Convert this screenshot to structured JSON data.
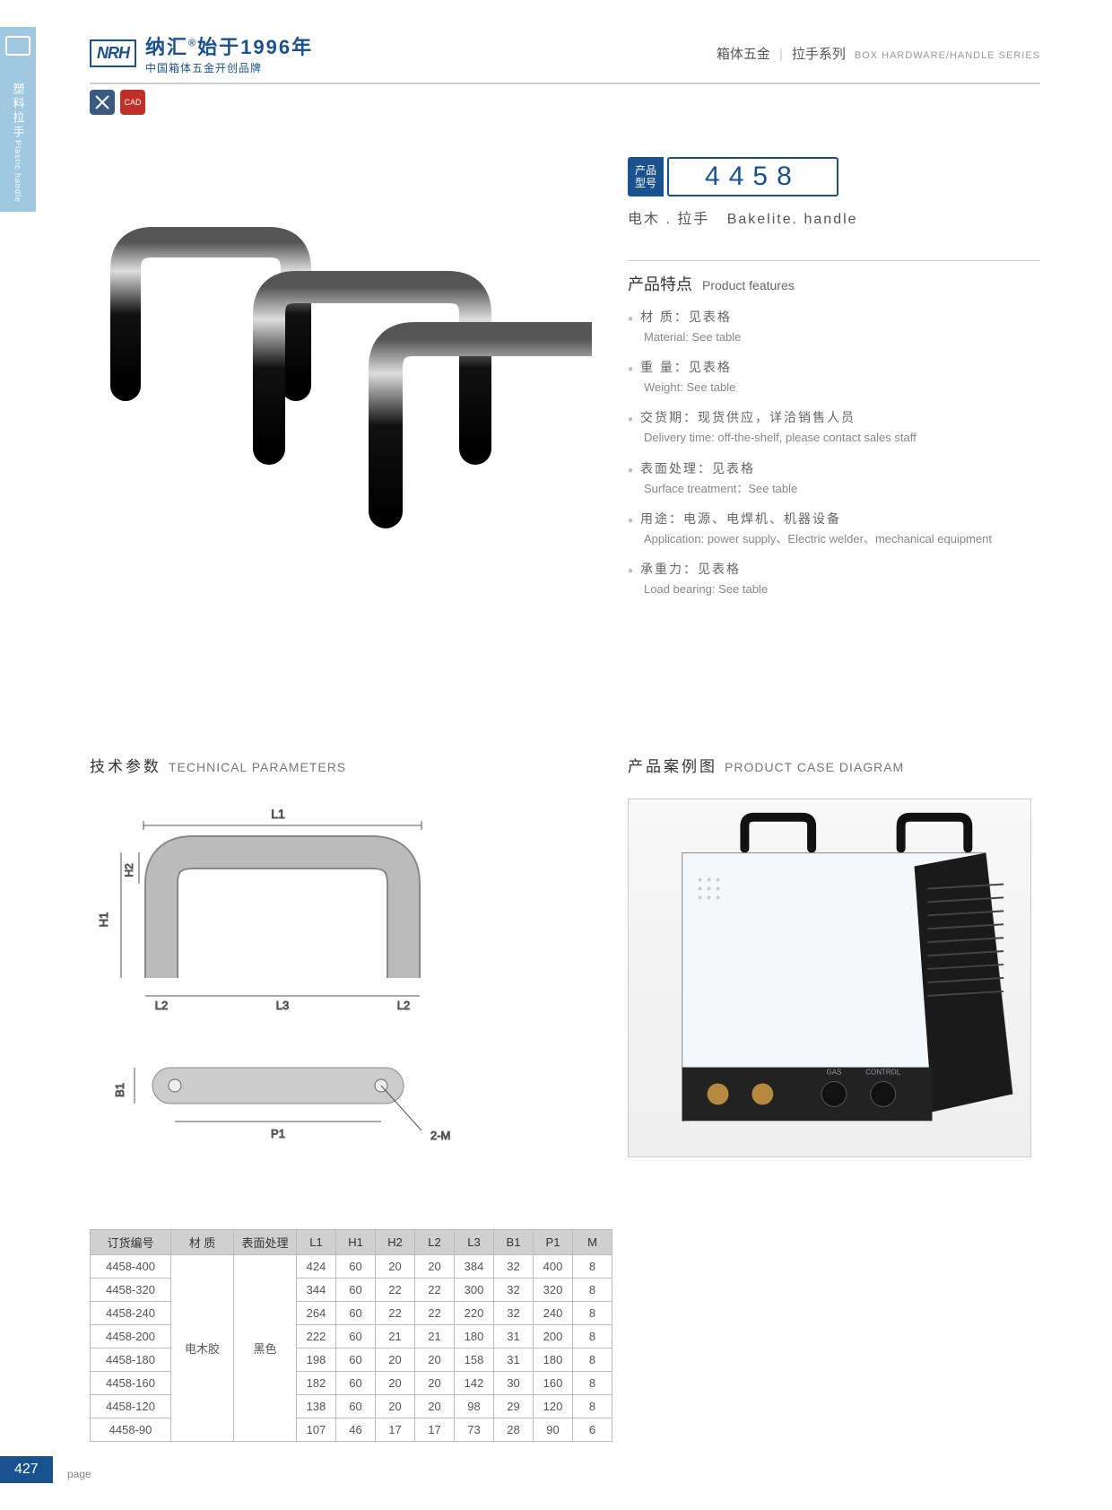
{
  "sidebar": {
    "cn": "塑料拉手",
    "en": "Plastic handle"
  },
  "logo": {
    "mark": "NRH",
    "cn": "纳汇",
    "suffix": "始于1996年",
    "sub": "中国箱体五金开创品牌",
    "reg": "®"
  },
  "header": {
    "cn1": "箱体五金",
    "cn2": "拉手系列",
    "en": "BOX HARDWARE/HANDLE SERIES"
  },
  "icons": {
    "cad": "CAD"
  },
  "model": {
    "label1": "产品",
    "label2": "型号",
    "number": "4458"
  },
  "product_name": {
    "cn": "电木 . 拉手",
    "en": "Bakelite. handle"
  },
  "features": {
    "title_cn": "产品特点",
    "title_en": "Product features",
    "items": [
      {
        "cn": "材 质：见表格",
        "en": "Material: See table"
      },
      {
        "cn": "重 量：见表格",
        "en": "Weight: See table"
      },
      {
        "cn": "交货期：现货供应，详洽销售人员",
        "en": "Delivery time: off-the-shelf, please contact sales staff"
      },
      {
        "cn": "表面处理：见表格",
        "en": "Surface treatment：See table"
      },
      {
        "cn": "用途：电源、电焊机、机器设备",
        "en": "Application: power supply、Electric welder、mechanical equipment"
      },
      {
        "cn": "承重力：见表格",
        "en": "Load bearing: See table"
      }
    ]
  },
  "tech": {
    "cn": "技术参数",
    "en": "TECHNICAL PARAMETERS"
  },
  "case": {
    "cn": "产品案例图",
    "en": "PRODUCT CASE DIAGRAM"
  },
  "diagram_labels": {
    "L1": "L1",
    "L2": "L2",
    "L3": "L3",
    "H1": "H1",
    "H2": "H2",
    "B1": "B1",
    "P1": "P1",
    "M": "2-M"
  },
  "table": {
    "headers": [
      "订货编号",
      "材 质",
      "表面处理",
      "L1",
      "H1",
      "H2",
      "L2",
      "L3",
      "B1",
      "P1",
      "M"
    ],
    "material": "电木胶",
    "surface": "黑色",
    "rows": [
      {
        "code": "4458-400",
        "L1": "424",
        "H1": "60",
        "H2": "20",
        "L2": "20",
        "L3": "384",
        "B1": "32",
        "P1": "400",
        "M": "8"
      },
      {
        "code": "4458-320",
        "L1": "344",
        "H1": "60",
        "H2": "22",
        "L2": "22",
        "L3": "300",
        "B1": "32",
        "P1": "320",
        "M": "8"
      },
      {
        "code": "4458-240",
        "L1": "264",
        "H1": "60",
        "H2": "22",
        "L2": "22",
        "L3": "220",
        "B1": "32",
        "P1": "240",
        "M": "8"
      },
      {
        "code": "4458-200",
        "L1": "222",
        "H1": "60",
        "H2": "21",
        "L2": "21",
        "L3": "180",
        "B1": "31",
        "P1": "200",
        "M": "8"
      },
      {
        "code": "4458-180",
        "L1": "198",
        "H1": "60",
        "H2": "20",
        "L2": "20",
        "L3": "158",
        "B1": "31",
        "P1": "180",
        "M": "8"
      },
      {
        "code": "4458-160",
        "L1": "182",
        "H1": "60",
        "H2": "20",
        "L2": "20",
        "L3": "142",
        "B1": "30",
        "P1": "160",
        "M": "8"
      },
      {
        "code": "4458-120",
        "L1": "138",
        "H1": "60",
        "H2": "20",
        "L2": "20",
        "L3": "98",
        "B1": "29",
        "P1": "120",
        "M": "8"
      },
      {
        "code": "4458-90",
        "L1": "107",
        "H1": "46",
        "H2": "17",
        "L2": "17",
        "L3": "73",
        "B1": "28",
        "P1": "90",
        "M": "6"
      }
    ]
  },
  "page": {
    "num": "427",
    "label": "page"
  }
}
